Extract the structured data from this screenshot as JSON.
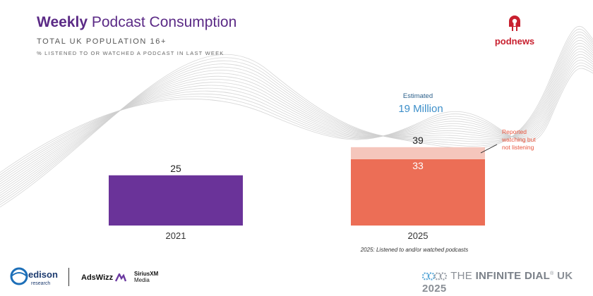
{
  "header": {
    "title_bold": "Weekly",
    "title_rest": "Podcast Consumption",
    "subtitle": "TOTAL UK POPULATION 16+",
    "subnote": "% LISTENED TO OR WATCHED A PODCAST IN LAST WEEK"
  },
  "brand": {
    "podnews": "podnews",
    "edison": "edison",
    "edison_sub": "research",
    "adswizz": "AdsWizz",
    "siriusxm": "SiriusXM",
    "siriusxm_sub": "Media",
    "infinite_prefix": "THE",
    "infinite_main": "INFINITE DIAL",
    "infinite_suffix": "UK 2025"
  },
  "colors": {
    "bar_2021": "#6a3399",
    "bar_2025": "#ec6e56",
    "bar_2025_watch": "#f5c6bc",
    "estimate_blue": "#3d8fc9",
    "annotation_red": "#e8553e"
  },
  "chart_data": {
    "type": "bar",
    "title": "Weekly Podcast Consumption",
    "ylabel": "% listened to or watched a podcast in last week",
    "xlabel": "",
    "ylim": [
      0,
      50
    ],
    "categories": [
      "2021",
      "2025"
    ],
    "series": [
      {
        "name": "Listened",
        "values": [
          25,
          33
        ]
      },
      {
        "name": "Reported watching but not listening",
        "values": [
          0,
          6
        ]
      }
    ],
    "totals": [
      25,
      39
    ],
    "data_labels": {
      "bar_2021": "25",
      "bar_2025_listened": "33",
      "bar_2025_total": "39"
    },
    "annotations": {
      "estimate_caption": "Estimated",
      "estimate_value": "19 Million",
      "watching_note": [
        "Reported",
        "watching but",
        "not listening"
      ],
      "footnote": "2025: Listened to and/or watched podcasts"
    }
  }
}
